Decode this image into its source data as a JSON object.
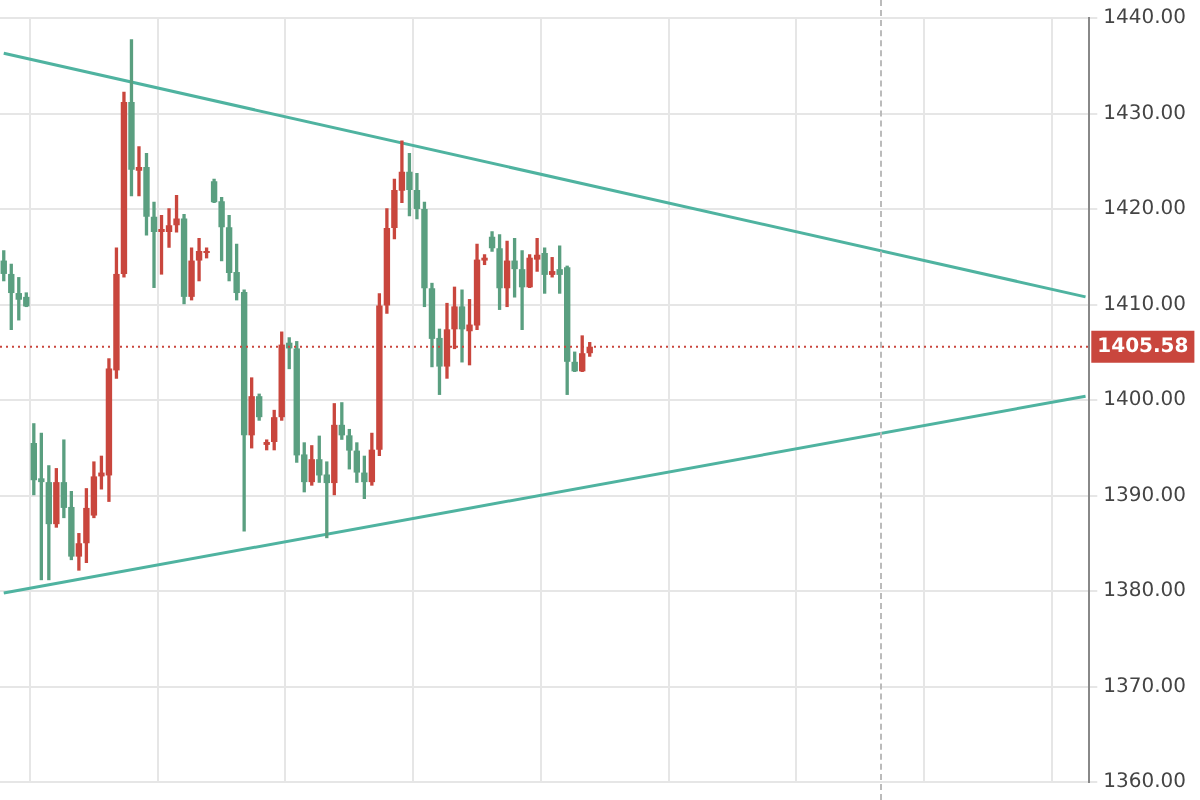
{
  "chart_data": {
    "type": "candlestick",
    "categories": [
      null,
      null,
      null,
      null,
      null,
      null,
      null,
      null,
      null,
      null,
      null,
      null,
      null,
      null,
      null,
      null,
      null,
      null,
      null,
      null,
      null,
      null,
      null,
      null,
      null,
      null,
      null,
      null,
      null,
      null,
      null,
      null,
      null,
      null,
      null,
      null,
      null,
      null,
      null,
      null,
      null,
      null,
      null,
      null,
      null,
      null,
      null,
      null,
      null,
      null,
      null,
      null,
      null,
      null,
      null,
      null,
      null,
      null,
      null,
      null,
      null,
      null,
      null,
      null,
      null,
      null,
      null,
      null,
      null,
      null,
      null,
      null,
      null,
      null,
      null,
      null,
      null,
      null,
      null,
      null,
      null,
      null,
      null,
      null,
      null,
      null,
      null,
      null,
      null,
      null,
      null,
      null,
      null,
      null,
      null,
      null,
      null,
      null,
      null,
      null,
      null,
      null,
      null,
      null,
      null,
      null,
      null,
      null,
      null,
      null,
      null,
      null,
      null,
      null,
      null,
      null,
      null,
      null,
      null,
      null,
      null,
      null,
      null,
      null,
      null,
      null,
      null,
      null,
      null,
      null,
      null,
      null,
      null,
      null,
      null,
      null,
      null,
      null,
      null,
      null,
      null,
      null,
      null,
      null,
      null
    ],
    "series": [
      {
        "type": "candlestick",
        "ohlc": [
          [
            1414.6,
            1415.6,
            1412.5,
            1413.2
          ],
          [
            1413.2,
            1414.2,
            1407.4,
            1411.2
          ],
          [
            1411.2,
            1412.8,
            1408.4,
            1410.5
          ],
          [
            1410.8,
            1411.2,
            1409.8,
            1409.8
          ],
          [
            1395.5,
            1397.5,
            1390.1,
            1391.6
          ],
          [
            1391.8,
            1396.5,
            1381.2,
            1391.4
          ],
          [
            1391.4,
            1393.1,
            1381.2,
            1387.0
          ],
          [
            1387.0,
            1392.8,
            1386.7,
            1391.4
          ],
          [
            1391.4,
            1395.8,
            1387.7,
            1388.7
          ],
          [
            1388.8,
            1390.4,
            1383.3,
            1383.6
          ],
          [
            1383.6,
            1386.0,
            1382.2,
            1385.0
          ],
          [
            1385.0,
            1390.7,
            1383.0,
            1388.7
          ],
          [
            1387.9,
            1393.5,
            1387.7,
            1392.0
          ],
          [
            1392.0,
            1394.1,
            1390.7,
            1392.4
          ],
          [
            1392.1,
            1404.3,
            1389.4,
            1403.3
          ],
          [
            1403.1,
            1415.9,
            1402.3,
            1413.2
          ],
          [
            1413.2,
            1432.2,
            1412.9,
            1431.2
          ],
          [
            1431.2,
            1437.7,
            1421.4,
            1424.1
          ],
          [
            1424.0,
            1426.5,
            1421.4,
            1424.4
          ],
          [
            1424.4,
            1425.8,
            1417.3,
            1419.2
          ],
          [
            1419.2,
            1420.7,
            1411.8,
            1417.6
          ],
          [
            1417.6,
            1419.3,
            1413.2,
            1417.9
          ],
          [
            1417.6,
            1420.0,
            1416.0,
            1418.3
          ],
          [
            1418.3,
            1421.4,
            1417.6,
            1419.0
          ],
          [
            1419.0,
            1419.4,
            1410.1,
            1410.8
          ],
          [
            1410.8,
            1415.9,
            1410.5,
            1414.6
          ],
          [
            1414.6,
            1416.9,
            1412.5,
            1415.6
          ],
          [
            1415.4,
            1415.9,
            1414.9,
            1415.6
          ],
          [
            1422.9,
            1423.1,
            1420.7,
            1420.7
          ],
          [
            1420.8,
            1421.2,
            1414.6,
            1418.1
          ],
          [
            1418.1,
            1419.3,
            1412.5,
            1413.3
          ],
          [
            1413.4,
            1416.3,
            1410.5,
            1411.2
          ],
          [
            1411.3,
            1411.5,
            1386.3,
            1396.3
          ],
          [
            1396.3,
            1402.3,
            1395.0,
            1400.4
          ],
          [
            1400.4,
            1400.6,
            1397.9,
            1398.2
          ],
          [
            1395.3,
            1395.8,
            1394.8,
            1395.6
          ],
          [
            1395.6,
            1398.9,
            1394.8,
            1398.2
          ],
          [
            1398.2,
            1407.1,
            1397.9,
            1405.8
          ],
          [
            1406.0,
            1406.5,
            1403.3,
            1405.4
          ],
          [
            1405.4,
            1406.1,
            1393.5,
            1394.2
          ],
          [
            1394.3,
            1395.5,
            1390.4,
            1391.4
          ],
          [
            1391.4,
            1395.2,
            1391.1,
            1393.8
          ],
          [
            1393.8,
            1396.2,
            1391.4,
            1392.1
          ],
          [
            1392.2,
            1393.5,
            1385.6,
            1391.3
          ],
          [
            1391.3,
            1399.6,
            1390.1,
            1397.4
          ],
          [
            1397.4,
            1399.7,
            1395.9,
            1396.3
          ],
          [
            1396.3,
            1396.9,
            1392.8,
            1394.7
          ],
          [
            1394.7,
            1395.5,
            1391.4,
            1392.4
          ],
          [
            1392.4,
            1394.1,
            1389.7,
            1391.4
          ],
          [
            1391.4,
            1396.5,
            1391.1,
            1394.8
          ],
          [
            1394.8,
            1411.1,
            1394.2,
            1409.9
          ],
          [
            1409.9,
            1420.0,
            1409.1,
            1418.0
          ],
          [
            1418.0,
            1423.1,
            1416.9,
            1422.0
          ],
          [
            1421.9,
            1427.1,
            1420.7,
            1423.9
          ],
          [
            1423.9,
            1425.8,
            1419.3,
            1422.0
          ],
          [
            1422.0,
            1423.7,
            1419.0,
            1420.0
          ],
          [
            1420.0,
            1420.7,
            1409.8,
            1411.7
          ],
          [
            1411.7,
            1412.2,
            1403.5,
            1406.4
          ],
          [
            1406.5,
            1407.4,
            1400.6,
            1403.5
          ],
          [
            1403.5,
            1410.1,
            1402.3,
            1407.4
          ],
          [
            1407.4,
            1411.8,
            1405.4,
            1409.8
          ],
          [
            1409.8,
            1411.5,
            1404.0,
            1407.4
          ],
          [
            1407.2,
            1410.5,
            1403.7,
            1407.9
          ],
          [
            1407.8,
            1416.3,
            1407.4,
            1414.7
          ],
          [
            1414.6,
            1415.2,
            1414.2,
            1414.9
          ],
          [
            1417.1,
            1417.6,
            1415.6,
            1415.9
          ],
          [
            1415.9,
            1417.3,
            1409.5,
            1411.7
          ],
          [
            1411.7,
            1416.6,
            1409.8,
            1414.6
          ],
          [
            1414.6,
            1416.9,
            1410.8,
            1413.7
          ],
          [
            1413.7,
            1415.6,
            1407.4,
            1411.8
          ],
          [
            1411.8,
            1415.2,
            1411.8,
            1414.9
          ],
          [
            1414.7,
            1416.9,
            1413.5,
            1415.2
          ],
          [
            1415.4,
            1415.9,
            1411.2,
            1413.1
          ],
          [
            1413.1,
            1414.9,
            1412.9,
            1413.5
          ],
          [
            1413.7,
            1416.1,
            1411.2,
            1413.1
          ],
          [
            1413.9,
            1414.0,
            1400.6,
            1404.0
          ],
          [
            1404.0,
            1405.0,
            1403.0,
            1403.0
          ],
          [
            1403.0,
            1406.7,
            1403.0,
            1404.9
          ],
          [
            1404.9,
            1406.0,
            1404.6,
            1405.58
          ],
          null,
          null,
          null,
          null,
          null,
          null,
          null,
          null,
          null,
          null,
          null,
          null,
          null,
          null,
          null,
          null,
          null,
          null,
          null,
          null,
          null,
          null,
          null,
          null,
          null,
          null,
          null,
          null,
          null,
          null,
          null,
          null,
          null,
          null,
          null,
          null,
          null,
          null,
          null,
          null,
          null,
          null,
          null,
          null,
          null,
          null,
          null,
          null,
          null,
          null,
          null,
          null,
          null,
          null,
          null,
          null,
          null,
          null,
          null,
          null,
          null,
          null,
          null,
          null,
          null,
          null
        ],
        "colors": [
          "#5a9f80",
          "#5a9f80",
          "#5a9f80",
          "#5a9f80",
          "#5a9f80",
          "#5a9f80",
          "#5a9f80",
          "#c9463d",
          "#5a9f80",
          "#5a9f80",
          "#c9463d",
          "#c9463d",
          "#c9463d",
          "#c9463d",
          "#c9463d",
          "#c9463d",
          "#c9463d",
          "#5a9f80",
          "#c9463d",
          "#5a9f80",
          "#5a9f80",
          "#c9463d",
          "#c9463d",
          "#c9463d",
          "#5a9f80",
          "#c9463d",
          "#c9463d",
          "#c9463d",
          "#5a9f80",
          "#5a9f80",
          "#5a9f80",
          "#5a9f80",
          "#5a9f80",
          "#c9463d",
          "#5a9f80",
          "#c9463d",
          "#c9463d",
          "#c9463d",
          "#5a9f80",
          "#5a9f80",
          "#5a9f80",
          "#c9463d",
          "#5a9f80",
          "#5a9f80",
          "#c9463d",
          "#5a9f80",
          "#5a9f80",
          "#5a9f80",
          "#5a9f80",
          "#c9463d",
          "#c9463d",
          "#c9463d",
          "#c9463d",
          "#c9463d",
          "#5a9f80",
          "#5a9f80",
          "#5a9f80",
          "#5a9f80",
          "#5a9f80",
          "#c9463d",
          "#c9463d",
          "#5a9f80",
          "#c9463d",
          "#c9463d",
          "#c9463d",
          "#5a9f80",
          "#5a9f80",
          "#c9463d",
          "#5a9f80",
          "#5a9f80",
          "#c9463d",
          "#c9463d",
          "#5a9f80",
          "#c9463d",
          "#5a9f80",
          "#5a9f80",
          "#5a9f80",
          "#c9463d",
          "#c9463d",
          null,
          null,
          null,
          null,
          null,
          null,
          null,
          null,
          null,
          null,
          null,
          null,
          null,
          null,
          null,
          null,
          null,
          null,
          null,
          null,
          null,
          null,
          null,
          null,
          null,
          null,
          null,
          null,
          null,
          null,
          null,
          null,
          null,
          null,
          null,
          null,
          null,
          null,
          null,
          null,
          null,
          null,
          null,
          null,
          null,
          null,
          null,
          null,
          null,
          null,
          null,
          null,
          null,
          null,
          null,
          null,
          null,
          null,
          null,
          null,
          null,
          null,
          null,
          null,
          null,
          null
        ]
      },
      {
        "type": "line",
        "color": "#4fb3a0",
        "values": [
          1436.3,
          null,
          null,
          null,
          null,
          null,
          null,
          null,
          null,
          null,
          null,
          null,
          null,
          null,
          null,
          null,
          null,
          null,
          null,
          null,
          null,
          null,
          null,
          null,
          null,
          null,
          null,
          null,
          null,
          null,
          null,
          null,
          null,
          null,
          null,
          null,
          null,
          null,
          null,
          null,
          null,
          null,
          null,
          null,
          null,
          null,
          null,
          null,
          null,
          null,
          null,
          null,
          null,
          null,
          null,
          null,
          null,
          null,
          null,
          null,
          null,
          null,
          null,
          null,
          null,
          null,
          null,
          null,
          null,
          null,
          null,
          null,
          null,
          null,
          null,
          null,
          null,
          null,
          null,
          null,
          null,
          null,
          null,
          null,
          null,
          null,
          null,
          null,
          null,
          null,
          null,
          null,
          null,
          null,
          null,
          null,
          null,
          null,
          null,
          null,
          null,
          null,
          null,
          null,
          null,
          null,
          null,
          null,
          null,
          null,
          null,
          null,
          null,
          null,
          null,
          null,
          null,
          null,
          null,
          null,
          null,
          null,
          null,
          null,
          null,
          null,
          null,
          null,
          null,
          null,
          null,
          null,
          null,
          null,
          null,
          null,
          null,
          null,
          null,
          null,
          null,
          null,
          null,
          null,
          1410.8
        ]
      },
      {
        "type": "line",
        "color": "#4fb3a0",
        "values": [
          1379.8,
          null,
          null,
          null,
          null,
          null,
          null,
          null,
          null,
          null,
          null,
          null,
          null,
          null,
          null,
          null,
          null,
          null,
          null,
          null,
          null,
          null,
          null,
          null,
          null,
          null,
          null,
          null,
          null,
          null,
          null,
          null,
          null,
          null,
          null,
          null,
          null,
          null,
          null,
          null,
          null,
          null,
          null,
          null,
          null,
          null,
          null,
          null,
          null,
          null,
          null,
          null,
          null,
          null,
          null,
          null,
          null,
          null,
          null,
          null,
          null,
          null,
          null,
          null,
          null,
          null,
          null,
          null,
          null,
          null,
          null,
          null,
          null,
          null,
          null,
          null,
          null,
          null,
          null,
          null,
          null,
          null,
          null,
          null,
          null,
          null,
          null,
          null,
          null,
          null,
          null,
          null,
          null,
          null,
          null,
          null,
          null,
          null,
          null,
          null,
          null,
          null,
          null,
          null,
          null,
          null,
          null,
          null,
          null,
          null,
          null,
          null,
          null,
          null,
          null,
          null,
          null,
          null,
          null,
          null,
          null,
          null,
          null,
          null,
          null,
          null,
          null,
          null,
          null,
          null,
          null,
          null,
          null,
          null,
          null,
          null,
          null,
          null,
          null,
          null,
          null,
          null,
          null,
          null,
          1400.4
        ]
      }
    ],
    "ylim": [
      1360,
      1440
    ],
    "yticks": [
      {
        "value": 1360,
        "label": "1360.00"
      },
      {
        "value": 1370,
        "label": "1370.00"
      },
      {
        "value": 1380,
        "label": "1380.00"
      },
      {
        "value": 1390,
        "label": "1390.00"
      },
      {
        "value": 1400,
        "label": "1400.00"
      },
      {
        "value": 1410,
        "label": "1410.00"
      },
      {
        "value": 1420,
        "label": "1420.00"
      },
      {
        "value": 1430,
        "label": "1430.00"
      },
      {
        "value": 1440,
        "label": "1440.00"
      }
    ],
    "ref_lines": [
      {
        "axis": "y",
        "value": 1405.58,
        "label": "1405.58",
        "color": "#c9463d",
        "line_style": "dotted"
      }
    ],
    "grid": true,
    "tick_labels": "y"
  }
}
